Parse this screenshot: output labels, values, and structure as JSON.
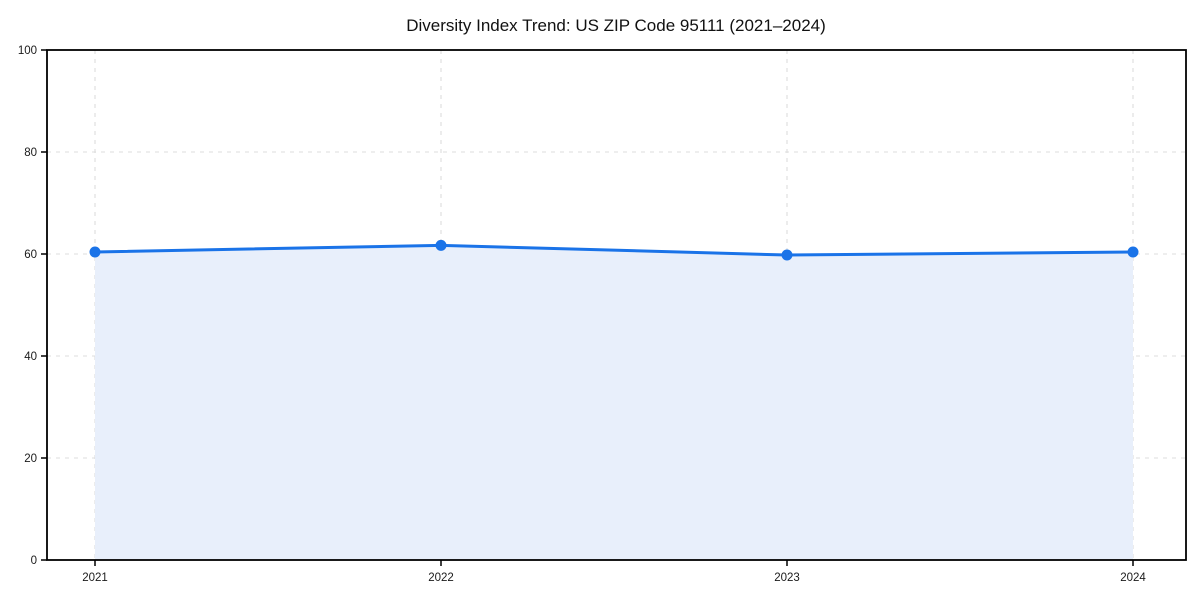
{
  "page": {
    "background": "#ffffff"
  },
  "chart_data": {
    "type": "area",
    "title": "Diversity Index Trend: US ZIP Code 95111 (2021–2024)",
    "categories": [
      "2021",
      "2022",
      "2023",
      "2024"
    ],
    "series": [
      {
        "name": "Diversity Index",
        "values": [
          60.4,
          61.7,
          59.8,
          60.4
        ]
      }
    ],
    "xlabel": "",
    "ylabel": "",
    "ylim": [
      0,
      100
    ],
    "yticks": [
      0,
      20,
      40,
      60,
      80,
      100
    ],
    "grid": true,
    "grid_style": "dashed",
    "legend": "none",
    "colors": {
      "line": "#1a73e8",
      "marker": "#1a73e8",
      "fill": "#e8effb",
      "grid": "#dcdcdc",
      "axis": "#000000",
      "text": "#1a1a1a"
    }
  }
}
